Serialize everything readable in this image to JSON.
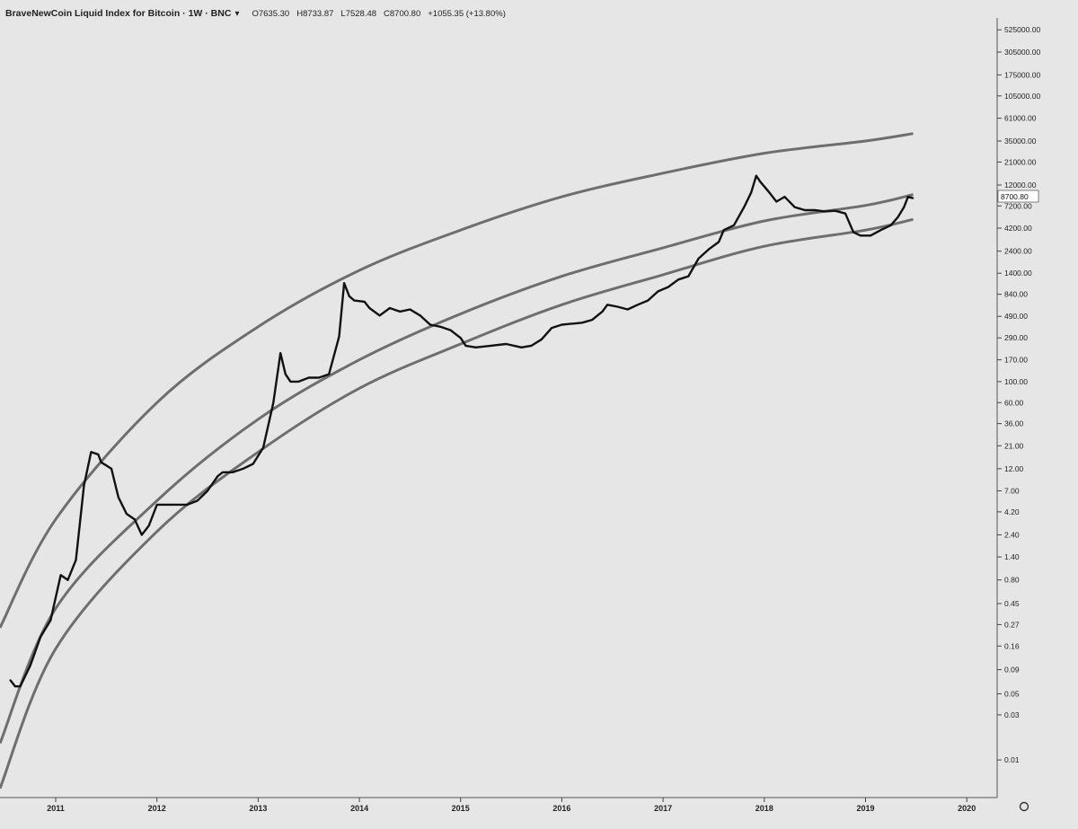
{
  "header": {
    "title": "BraveNewCoin Liquid Index for Bitcoin · 1W · BNC",
    "settings_icon": "chevron-down-icon",
    "open": "O7635.30",
    "high": "H8733.87",
    "low": "L7528.48",
    "close": "C8700.80",
    "change": "+1055.35 (+13.80%)"
  },
  "current_price_label": "8700.80",
  "settings_button_icon": "gear-icon",
  "chart_data": {
    "type": "line",
    "title": "BraveNewCoin Liquid Index for Bitcoin · 1W · BNC",
    "xlabel": "",
    "ylabel": "",
    "y_scale": "log",
    "ylim": [
      0.004,
      700000
    ],
    "xlim": [
      2010.45,
      2020.3
    ],
    "x_ticks": [
      "2011",
      "2012",
      "2013",
      "2014",
      "2015",
      "2016",
      "2017",
      "2018",
      "2019",
      "2020"
    ],
    "y_ticks": [
      "525000.00",
      "305000.00",
      "175000.00",
      "105000.00",
      "61000.00",
      "35000.00",
      "21000.00",
      "12000.00",
      "7200.00",
      "4200.00",
      "2400.00",
      "1400.00",
      "840.00",
      "490.00",
      "290.00",
      "170.00",
      "100.00",
      "60.00",
      "36.00",
      "21.00",
      "12.00",
      "7.00",
      "4.20",
      "2.40",
      "1.40",
      "0.80",
      "0.45",
      "0.27",
      "0.16",
      "0.09",
      "0.05",
      "0.03",
      "0.01"
    ],
    "legend": "none",
    "grid": false,
    "series": [
      {
        "x": [
          2010.55,
          2010.6,
          2010.65,
          2010.75,
          2010.85,
          2010.95,
          2011.05,
          2011.12,
          2011.2,
          2011.28,
          2011.35,
          2011.42,
          2011.45,
          2011.5,
          2011.55,
          2011.62,
          2011.7,
          2011.78,
          2011.85,
          2011.92,
          2012.0,
          2012.1,
          2012.2,
          2012.3,
          2012.4,
          2012.5,
          2012.6,
          2012.65,
          2012.75,
          2012.85,
          2012.95,
          2013.05,
          2013.15,
          2013.22,
          2013.27,
          2013.32,
          2013.4,
          2013.5,
          2013.6,
          2013.7,
          2013.8,
          2013.85,
          2013.9,
          2013.95,
          2014.05,
          2014.1,
          2014.2,
          2014.3,
          2014.4,
          2014.5,
          2014.6,
          2014.7,
          2014.8,
          2014.9,
          2015.0,
          2015.05,
          2015.15,
          2015.3,
          2015.45,
          2015.6,
          2015.7,
          2015.8,
          2015.9,
          2016.0,
          2016.1,
          2016.2,
          2016.3,
          2016.4,
          2016.45,
          2016.55,
          2016.65,
          2016.75,
          2016.85,
          2016.95,
          2017.05,
          2017.15,
          2017.25,
          2017.35,
          2017.45,
          2017.55,
          2017.6,
          2017.7,
          2017.8,
          2017.87,
          2017.92,
          2017.96,
          2018.05,
          2018.12,
          2018.2,
          2018.3,
          2018.4,
          2018.5,
          2018.6,
          2018.7,
          2018.8,
          2018.88,
          2018.95,
          2019.05,
          2019.15,
          2019.25,
          2019.32,
          2019.38,
          2019.42,
          2019.47
        ],
        "y": [
          0.07,
          0.06,
          0.06,
          0.1,
          0.2,
          0.3,
          0.9,
          0.8,
          1.3,
          8.0,
          18,
          17,
          14,
          13,
          12,
          6,
          4,
          3.5,
          2.4,
          3,
          5,
          5,
          5,
          5,
          5.5,
          7,
          10,
          11,
          11,
          12,
          13.5,
          20,
          60,
          200,
          120,
          100,
          100,
          110,
          110,
          120,
          300,
          1100,
          800,
          720,
          700,
          600,
          500,
          600,
          550,
          580,
          500,
          400,
          380,
          350,
          290,
          240,
          230,
          240,
          250,
          230,
          240,
          280,
          370,
          400,
          410,
          420,
          450,
          550,
          650,
          620,
          580,
          650,
          720,
          900,
          1000,
          1200,
          1300,
          2000,
          2500,
          3000,
          4000,
          4500,
          7000,
          10000,
          15000,
          13000,
          10000,
          8000,
          9000,
          7000,
          6500,
          6500,
          6300,
          6400,
          6000,
          3800,
          3500,
          3500,
          4000,
          4500,
          5500,
          7000,
          9000,
          8700
        ]
      }
    ],
    "bands": [
      {
        "name": "",
        "points": [
          [
            2010.45,
            0.25
          ],
          [
            2011.0,
            3.5
          ],
          [
            2012.0,
            60
          ],
          [
            2013.0,
            380
          ],
          [
            2014.0,
            1500
          ],
          [
            2015.0,
            4000
          ],
          [
            2016.0,
            9000
          ],
          [
            2017.0,
            16000
          ],
          [
            2018.0,
            26000
          ],
          [
            2019.0,
            35000
          ],
          [
            2019.47,
            42000
          ]
        ]
      },
      {
        "name": "",
        "points": [
          [
            2010.45,
            0.015
          ],
          [
            2011.0,
            0.4
          ],
          [
            2012.0,
            5.5
          ],
          [
            2013.0,
            40
          ],
          [
            2014.0,
            170
          ],
          [
            2015.0,
            520
          ],
          [
            2016.0,
            1300
          ],
          [
            2017.0,
            2600
          ],
          [
            2018.0,
            5000
          ],
          [
            2019.0,
            7300
          ],
          [
            2019.47,
            9500
          ]
        ]
      },
      {
        "name": "",
        "points": [
          [
            2010.45,
            0.005
          ],
          [
            2011.0,
            0.15
          ],
          [
            2012.0,
            2.6
          ],
          [
            2013.0,
            18
          ],
          [
            2014.0,
            85
          ],
          [
            2015.0,
            250
          ],
          [
            2016.0,
            650
          ],
          [
            2017.0,
            1350
          ],
          [
            2018.0,
            2700
          ],
          [
            2019.0,
            4000
          ],
          [
            2019.47,
            5200
          ]
        ]
      }
    ]
  }
}
